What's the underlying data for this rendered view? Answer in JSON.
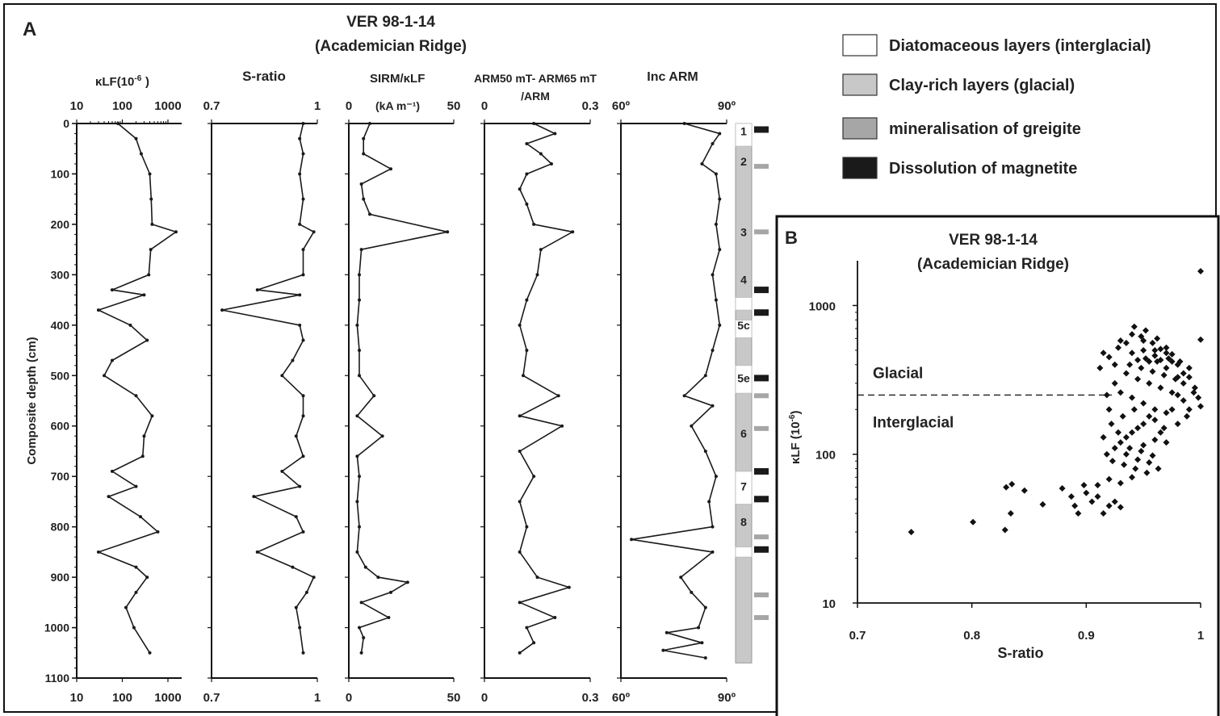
{
  "panel_a_letter": "A",
  "panel_b_letter": "B",
  "title_line1": "VER 98-1-14",
  "title_line2": "(Academician Ridge)",
  "legend": [
    {
      "label": "Diatomaceous layers (interglacial)",
      "fill": "#ffffff"
    },
    {
      "label": "Clay-rich layers (glacial)",
      "fill": "#c8c8c8"
    },
    {
      "label": "mineralisation of greigite",
      "fill": "#a6a6a6"
    },
    {
      "label": "Dissolution of magnetite",
      "fill": "#1a1a1a"
    }
  ],
  "colors": {
    "line": "#1a1a1a",
    "grey_line": "#9a9a9a",
    "clay": "#c8c8c8",
    "greigite": "#a6a6a6",
    "dissolution": "#1a1a1a"
  },
  "chart_data": [
    {
      "type": "line",
      "panel": "A",
      "ylabel": "Composite depth (cm)",
      "ylim": [
        0,
        1100
      ],
      "yticks": [
        0,
        100,
        200,
        300,
        400,
        500,
        600,
        700,
        800,
        900,
        1000,
        1100
      ],
      "tracks": [
        {
          "name": "κLF(10-6)",
          "scale": "log",
          "xlim": [
            10,
            2000
          ],
          "ticks": [
            "10",
            "100",
            "1000"
          ],
          "tick_values": [
            10,
            100,
            1000
          ],
          "depth": [
            0,
            30,
            60,
            100,
            150,
            200,
            215,
            250,
            300,
            330,
            340,
            370,
            400,
            430,
            470,
            500,
            540,
            580,
            620,
            660,
            690,
            720,
            740,
            780,
            810,
            850,
            880,
            900,
            930,
            960,
            1000,
            1050
          ],
          "values": [
            80,
            200,
            260,
            400,
            430,
            450,
            1500,
            420,
            380,
            60,
            300,
            30,
            150,
            350,
            60,
            40,
            200,
            450,
            300,
            280,
            60,
            200,
            50,
            250,
            600,
            30,
            200,
            350,
            200,
            120,
            180,
            400
          ]
        },
        {
          "name": "S-ratio",
          "scale": "linear",
          "xlim": [
            0.7,
            1.0
          ],
          "ticks": [
            "0.7",
            "1"
          ],
          "tick_values": [
            0.7,
            1.0
          ],
          "depth": [
            0,
            30,
            60,
            100,
            150,
            200,
            215,
            250,
            300,
            330,
            340,
            370,
            400,
            430,
            470,
            500,
            540,
            580,
            620,
            660,
            690,
            720,
            740,
            780,
            810,
            850,
            880,
            900,
            930,
            960,
            1000,
            1050
          ],
          "values": [
            0.96,
            0.95,
            0.96,
            0.95,
            0.96,
            0.95,
            0.99,
            0.96,
            0.96,
            0.83,
            0.95,
            0.73,
            0.95,
            0.96,
            0.93,
            0.9,
            0.96,
            0.96,
            0.94,
            0.96,
            0.9,
            0.95,
            0.82,
            0.94,
            0.96,
            0.83,
            0.93,
            0.99,
            0.97,
            0.94,
            0.95,
            0.96
          ]
        },
        {
          "name": "SIRM/κLF",
          "unit": "(kA m-1)",
          "scale": "linear",
          "xlim": [
            0,
            50
          ],
          "ticks": [
            "0",
            "50"
          ],
          "tick_values": [
            0,
            50
          ],
          "depth": [
            0,
            30,
            60,
            90,
            120,
            150,
            180,
            215,
            250,
            300,
            350,
            400,
            450,
            500,
            540,
            580,
            620,
            660,
            700,
            750,
            800,
            850,
            880,
            900,
            910,
            930,
            950,
            980,
            1000,
            1020,
            1050
          ],
          "values": [
            10,
            7,
            7,
            20,
            6,
            7,
            10,
            47,
            6,
            5,
            5,
            4,
            5,
            5,
            12,
            4,
            16,
            4,
            5,
            4,
            5,
            4,
            8,
            14,
            28,
            20,
            6,
            19,
            5,
            7,
            6
          ]
        },
        {
          "name": "ARM50 mT- ARM65 mT/ARM",
          "scale": "linear",
          "xlim": [
            0,
            0.3
          ],
          "ticks": [
            "0",
            "0.3"
          ],
          "tick_values": [
            0,
            0.3
          ],
          "depth": [
            0,
            20,
            40,
            60,
            80,
            100,
            130,
            160,
            200,
            215,
            250,
            300,
            350,
            400,
            450,
            500,
            540,
            580,
            600,
            650,
            700,
            750,
            800,
            850,
            900,
            920,
            950,
            980,
            1000,
            1030,
            1050
          ],
          "values": [
            0.14,
            0.2,
            0.12,
            0.16,
            0.19,
            0.12,
            0.1,
            0.12,
            0.14,
            0.25,
            0.16,
            0.15,
            0.12,
            0.1,
            0.12,
            0.11,
            0.21,
            0.1,
            0.22,
            0.1,
            0.14,
            0.1,
            0.12,
            0.1,
            0.15,
            0.24,
            0.1,
            0.2,
            0.12,
            0.14,
            0.1
          ]
        },
        {
          "name": "Inc ARM",
          "scale": "linear",
          "xlim": [
            60,
            90
          ],
          "ticks": [
            "60º",
            "90º"
          ],
          "tick_values": [
            60,
            90
          ],
          "depth": [
            0,
            20,
            40,
            80,
            100,
            150,
            200,
            250,
            300,
            350,
            400,
            450,
            500,
            540,
            560,
            600,
            650,
            700,
            750,
            800,
            825,
            850,
            900,
            930,
            960,
            1000,
            1010,
            1030,
            1045,
            1060
          ],
          "values": [
            78,
            88,
            86,
            83,
            87,
            88,
            87,
            88,
            86,
            87,
            88,
            86,
            84,
            78,
            86,
            80,
            84,
            87,
            85,
            86,
            63,
            86,
            77,
            80,
            84,
            82,
            73,
            83,
            72,
            84
          ]
        }
      ],
      "stratigraphy": {
        "units": [
          {
            "label": "1",
            "depth": 15,
            "type": "interglacial"
          },
          {
            "label": "2",
            "depth": 75,
            "type": "glacial"
          },
          {
            "label": "3",
            "depth": 215,
            "type": "glacial"
          },
          {
            "label": "4",
            "depth": 310,
            "type": "glacial"
          },
          {
            "label": "5c",
            "depth": 400,
            "type": "interglacial"
          },
          {
            "label": "5e",
            "depth": 505,
            "type": "interglacial"
          },
          {
            "label": "6",
            "depth": 615,
            "type": "glacial"
          },
          {
            "label": "7",
            "depth": 720,
            "type": "interglacial"
          },
          {
            "label": "8",
            "depth": 790,
            "type": "glacial"
          }
        ],
        "interglacial_intervals": [
          [
            0,
            45
          ],
          [
            345,
            370
          ],
          [
            390,
            425
          ],
          [
            480,
            535
          ],
          [
            690,
            755
          ],
          [
            840,
            860
          ]
        ],
        "column_extent": [
          0,
          1070
        ],
        "greigite_depths": [
          85,
          215,
          540,
          605,
          820,
          935,
          980
        ],
        "dissolution_depths": [
          12,
          330,
          375,
          505,
          690,
          745,
          845
        ]
      }
    },
    {
      "type": "scatter",
      "panel": "B",
      "title": "VER 98-1-14",
      "subtitle": "(Academician Ridge)",
      "xlabel": "S-ratio",
      "ylabel": "κLF (10-6)",
      "xlim": [
        0.7,
        1.0
      ],
      "ylim": [
        10,
        2000
      ],
      "yscale": "log",
      "xticks": [
        "0.7",
        "0.8",
        "0.9",
        "1"
      ],
      "xtick_values": [
        0.7,
        0.8,
        0.9,
        1.0
      ],
      "yticks": [
        "10",
        "100",
        "1000"
      ],
      "ytick_values": [
        10,
        100,
        1000
      ],
      "threshold": {
        "y": 250,
        "label_above": "Glacial",
        "label_below": "Interglacial"
      },
      "points": [
        [
          0.747,
          30
        ],
        [
          0.801,
          35
        ],
        [
          0.829,
          31
        ],
        [
          0.83,
          60
        ],
        [
          0.835,
          63
        ],
        [
          0.834,
          40
        ],
        [
          0.846,
          57
        ],
        [
          0.862,
          46
        ],
        [
          0.879,
          59
        ],
        [
          0.887,
          52
        ],
        [
          0.89,
          45
        ],
        [
          0.893,
          40
        ],
        [
          0.898,
          62
        ],
        [
          0.9,
          55
        ],
        [
          0.905,
          48
        ],
        [
          0.91,
          52
        ],
        [
          0.915,
          40
        ],
        [
          0.92,
          45
        ],
        [
          0.925,
          48
        ],
        [
          0.93,
          44
        ],
        [
          0.91,
          62
        ],
        [
          0.92,
          68
        ],
        [
          0.93,
          64
        ],
        [
          0.94,
          70
        ],
        [
          0.912,
          380
        ],
        [
          0.925,
          400
        ],
        [
          0.915,
          480
        ],
        [
          0.928,
          520
        ],
        [
          0.935,
          560
        ],
        [
          0.94,
          480
        ],
        [
          0.945,
          430
        ],
        [
          0.95,
          500
        ],
        [
          0.955,
          420
        ],
        [
          0.96,
          460
        ],
        [
          0.965,
          510
        ],
        [
          0.97,
          380
        ],
        [
          0.948,
          620
        ],
        [
          0.942,
          720
        ],
        [
          0.952,
          680
        ],
        [
          0.958,
          560
        ],
        [
          0.962,
          600
        ],
        [
          0.97,
          520
        ],
        [
          0.975,
          470
        ],
        [
          0.98,
          400
        ],
        [
          0.985,
          350
        ],
        [
          0.99,
          330
        ],
        [
          0.995,
          280
        ],
        [
          0.998,
          240
        ],
        [
          1.0,
          210
        ],
        [
          0.99,
          200
        ],
        [
          0.985,
          230
        ],
        [
          0.975,
          260
        ],
        [
          0.965,
          280
        ],
        [
          0.955,
          300
        ],
        [
          0.945,
          320
        ],
        [
          0.935,
          350
        ],
        [
          0.925,
          300
        ],
        [
          0.93,
          260
        ],
        [
          0.94,
          240
        ],
        [
          0.95,
          220
        ],
        [
          0.96,
          200
        ],
        [
          0.97,
          190
        ],
        [
          0.96,
          170
        ],
        [
          0.95,
          160
        ],
        [
          0.945,
          150
        ],
        [
          0.94,
          140
        ],
        [
          0.935,
          130
        ],
        [
          0.93,
          120
        ],
        [
          0.925,
          110
        ],
        [
          0.935,
          100
        ],
        [
          0.945,
          92
        ],
        [
          0.955,
          88
        ],
        [
          0.95,
          115
        ],
        [
          0.96,
          125
        ],
        [
          0.965,
          140
        ],
        [
          0.955,
          180
        ],
        [
          0.942,
          200
        ],
        [
          0.932,
          180
        ],
        [
          0.922,
          160
        ],
        [
          0.928,
          140
        ],
        [
          0.938,
          110
        ],
        [
          0.948,
          105
        ],
        [
          0.958,
          98
        ],
        [
          0.968,
          150
        ],
        [
          0.975,
          200
        ],
        [
          0.98,
          250
        ],
        [
          0.985,
          300
        ],
        [
          0.978,
          320
        ],
        [
          0.968,
          340
        ],
        [
          0.958,
          360
        ],
        [
          0.948,
          380
        ],
        [
          0.938,
          400
        ],
        [
          0.952,
          440
        ],
        [
          0.962,
          420
        ],
        [
          0.972,
          440
        ],
        [
          0.982,
          420
        ],
        [
          0.99,
          380
        ],
        [
          0.994,
          260
        ],
        [
          0.988,
          180
        ],
        [
          0.98,
          160
        ],
        [
          0.97,
          120
        ],
        [
          0.963,
          80
        ],
        [
          0.953,
          75
        ],
        [
          0.943,
          80
        ],
        [
          0.933,
          85
        ],
        [
          0.923,
          90
        ],
        [
          0.918,
          100
        ],
        [
          0.915,
          130
        ],
        [
          0.92,
          200
        ],
        [
          0.918,
          250
        ],
        [
          0.92,
          450
        ],
        [
          0.93,
          580
        ],
        [
          0.94,
          640
        ],
        [
          0.95,
          580
        ],
        [
          0.96,
          500
        ],
        [
          0.965,
          430
        ],
        [
          0.97,
          480
        ],
        [
          0.975,
          420
        ],
        [
          0.98,
          330
        ],
        [
          1.0,
          1700
        ],
        [
          1.0,
          590
        ]
      ]
    }
  ]
}
